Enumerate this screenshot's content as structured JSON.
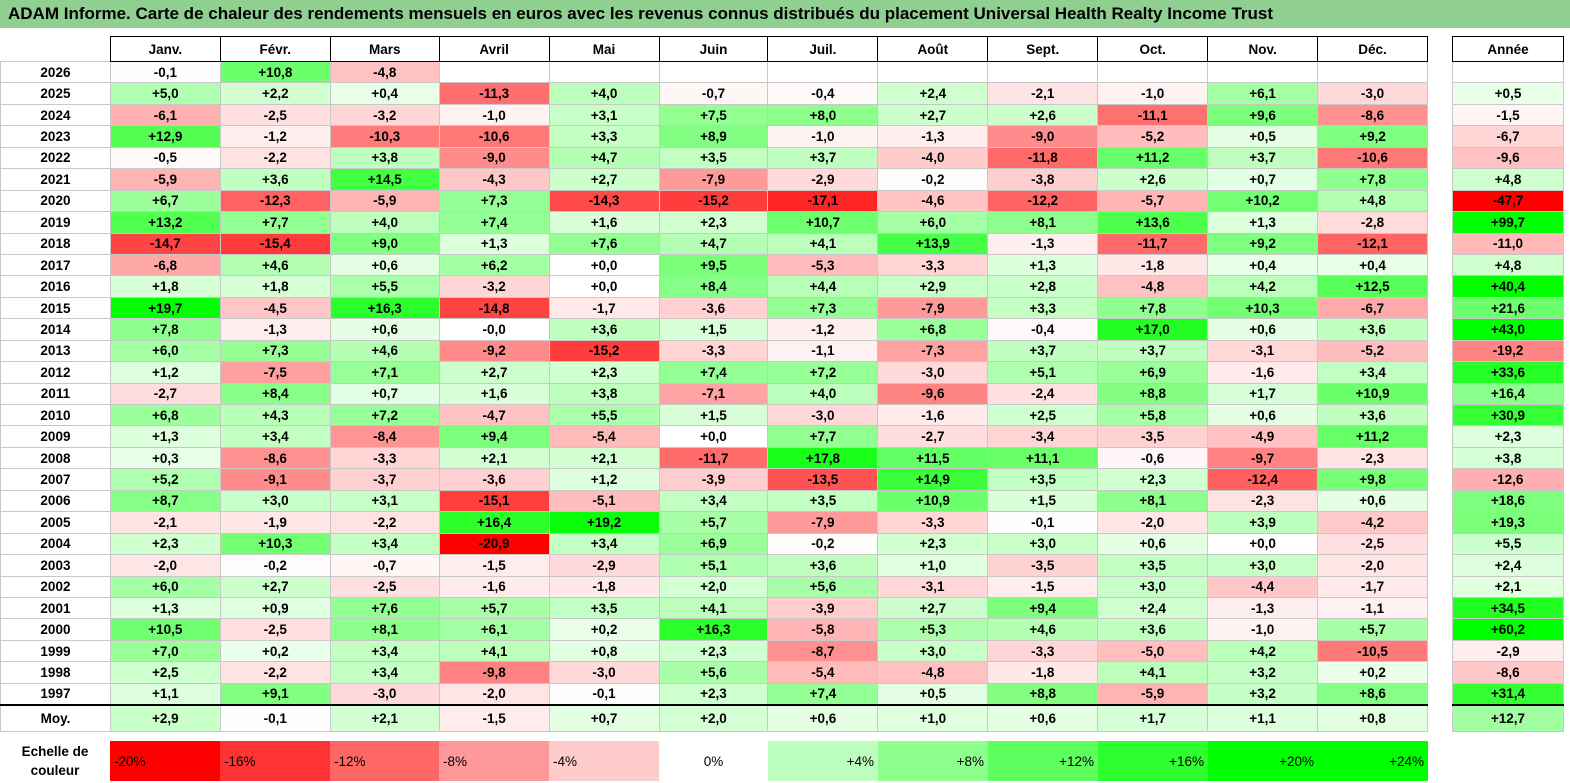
{
  "title": "ADAM Informe. Carte de chaleur des rendements mensuels en euros avec les revenus connus distribués du placement Universal Health Realty Income Trust",
  "chart_data": {
    "type": "heatmap",
    "columns": [
      "Janv.",
      "Févr.",
      "Mars",
      "Avril",
      "Mai",
      "Juin",
      "Juil.",
      "Août",
      "Sept.",
      "Oct.",
      "Nov.",
      "Déc."
    ],
    "year_column": "Année",
    "rows": [
      {
        "label": "2026",
        "values": [
          "-0,1",
          "+10,8",
          "-4,8",
          "",
          "",
          "",
          "",
          "",
          "",
          "",
          "",
          ""
        ],
        "year": ""
      },
      {
        "label": "2025",
        "values": [
          "+5,0",
          "+2,2",
          "+0,4",
          "-11,3",
          "+4,0",
          "-0,7",
          "-0,4",
          "+2,4",
          "-2,1",
          "-1,0",
          "+6,1",
          "-3,0"
        ],
        "year": "+0,5"
      },
      {
        "label": "2024",
        "values": [
          "-6,1",
          "-2,5",
          "-3,2",
          "-1,0",
          "+3,1",
          "+7,5",
          "+8,0",
          "+2,7",
          "+2,6",
          "-11,1",
          "+9,6",
          "-8,6"
        ],
        "year": "-1,5"
      },
      {
        "label": "2023",
        "values": [
          "+12,9",
          "-1,2",
          "-10,3",
          "-10,6",
          "+3,3",
          "+8,9",
          "-1,0",
          "-1,3",
          "-9,0",
          "-5,2",
          "+0,5",
          "+9,2"
        ],
        "year": "-6,7"
      },
      {
        "label": "2022",
        "values": [
          "-0,5",
          "-2,2",
          "+3,8",
          "-9,0",
          "+4,7",
          "+3,5",
          "+3,7",
          "-4,0",
          "-11,8",
          "+11,2",
          "+3,7",
          "-10,6"
        ],
        "year": "-9,6"
      },
      {
        "label": "2021",
        "values": [
          "-5,9",
          "+3,6",
          "+14,5",
          "-4,3",
          "+2,7",
          "-7,9",
          "-2,9",
          "-0,2",
          "-3,8",
          "+2,6",
          "+0,7",
          "+7,8"
        ],
        "year": "+4,8"
      },
      {
        "label": "2020",
        "values": [
          "+6,7",
          "-12,3",
          "-5,9",
          "+7,3",
          "-14,3",
          "-15,2",
          "-17,1",
          "-4,6",
          "-12,2",
          "-5,7",
          "+10,2",
          "+4,8"
        ],
        "year": "-47,7"
      },
      {
        "label": "2019",
        "values": [
          "+13,2",
          "+7,7",
          "+4,0",
          "+7,4",
          "+1,6",
          "+2,3",
          "+10,7",
          "+6,0",
          "+8,1",
          "+13,6",
          "+1,3",
          "-2,8"
        ],
        "year": "+99,7"
      },
      {
        "label": "2018",
        "values": [
          "-14,7",
          "-15,4",
          "+9,0",
          "+1,3",
          "+7,6",
          "+4,7",
          "+4,1",
          "+13,9",
          "-1,3",
          "-11,7",
          "+9,2",
          "-12,1"
        ],
        "year": "-11,0"
      },
      {
        "label": "2017",
        "values": [
          "-6,8",
          "+4,6",
          "+0,6",
          "+6,2",
          "+0,0",
          "+9,5",
          "-5,3",
          "-3,3",
          "+1,3",
          "-1,8",
          "+0,4",
          "+0,4"
        ],
        "year": "+4,8"
      },
      {
        "label": "2016",
        "values": [
          "+1,8",
          "+1,8",
          "+5,5",
          "-3,2",
          "+0,0",
          "+8,4",
          "+4,4",
          "+2,9",
          "+2,8",
          "-4,8",
          "+4,2",
          "+12,5"
        ],
        "year": "+40,4"
      },
      {
        "label": "2015",
        "values": [
          "+19,7",
          "-4,5",
          "+16,3",
          "-14,8",
          "-1,7",
          "-3,6",
          "+7,3",
          "-7,9",
          "+3,3",
          "+7,8",
          "+10,3",
          "-6,7"
        ],
        "year": "+21,6"
      },
      {
        "label": "2014",
        "values": [
          "+7,8",
          "-1,3",
          "+0,6",
          "-0,0",
          "+3,6",
          "+1,5",
          "-1,2",
          "+6,8",
          "-0,4",
          "+17,0",
          "+0,6",
          "+3,6"
        ],
        "year": "+43,0"
      },
      {
        "label": "2013",
        "values": [
          "+6,0",
          "+7,3",
          "+4,6",
          "-9,2",
          "-15,2",
          "-3,3",
          "-1,1",
          "-7,3",
          "+3,7",
          "+3,7",
          "-3,1",
          "-5,2"
        ],
        "year": "-19,2"
      },
      {
        "label": "2012",
        "values": [
          "+1,2",
          "-7,5",
          "+7,1",
          "+2,7",
          "+2,3",
          "+7,4",
          "+7,2",
          "-3,0",
          "+5,1",
          "+6,9",
          "-1,6",
          "+3,4"
        ],
        "year": "+33,6"
      },
      {
        "label": "2011",
        "values": [
          "-2,7",
          "+8,4",
          "+0,7",
          "+1,6",
          "+3,8",
          "-7,1",
          "+4,0",
          "-9,6",
          "-2,4",
          "+8,8",
          "+1,7",
          "+10,9"
        ],
        "year": "+16,4"
      },
      {
        "label": "2010",
        "values": [
          "+6,8",
          "+4,3",
          "+7,2",
          "-4,7",
          "+5,5",
          "+1,5",
          "-3,0",
          "-1,6",
          "+2,5",
          "+5,8",
          "+0,6",
          "+3,6"
        ],
        "year": "+30,9"
      },
      {
        "label": "2009",
        "values": [
          "+1,3",
          "+3,4",
          "-8,4",
          "+9,4",
          "-5,4",
          "+0,0",
          "+7,7",
          "-2,7",
          "-3,4",
          "-3,5",
          "-4,9",
          "+11,2"
        ],
        "year": "+2,3"
      },
      {
        "label": "2008",
        "values": [
          "+0,3",
          "-8,6",
          "-3,3",
          "+2,1",
          "+2,1",
          "-11,7",
          "+17,8",
          "+11,5",
          "+11,1",
          "-0,6",
          "-9,7",
          "-2,3"
        ],
        "year": "+3,8"
      },
      {
        "label": "2007",
        "values": [
          "+5,2",
          "-9,1",
          "-3,7",
          "-3,6",
          "+1,2",
          "-3,9",
          "-13,5",
          "+14,9",
          "+3,5",
          "+2,3",
          "-12,4",
          "+9,8"
        ],
        "year": "-12,6"
      },
      {
        "label": "2006",
        "values": [
          "+8,7",
          "+3,0",
          "+3,1",
          "-15,1",
          "-5,1",
          "+3,4",
          "+3,5",
          "+10,9",
          "+1,5",
          "+8,1",
          "-2,3",
          "+0,6"
        ],
        "year": "+18,6"
      },
      {
        "label": "2005",
        "values": [
          "-2,1",
          "-1,9",
          "-2,2",
          "+16,4",
          "+19,2",
          "+5,7",
          "-7,9",
          "-3,3",
          "-0,1",
          "-2,0",
          "+3,9",
          "-4,2"
        ],
        "year": "+19,3"
      },
      {
        "label": "2004",
        "values": [
          "+2,3",
          "+10,3",
          "+3,4",
          "-20,9",
          "+3,4",
          "+6,9",
          "-0,2",
          "+2,3",
          "+3,0",
          "+0,6",
          "+0,0",
          "-2,5"
        ],
        "year": "+5,5"
      },
      {
        "label": "2003",
        "values": [
          "-2,0",
          "-0,2",
          "-0,7",
          "-1,5",
          "-2,9",
          "+5,1",
          "+3,6",
          "+1,0",
          "-3,5",
          "+3,5",
          "+3,0",
          "-2,0"
        ],
        "year": "+2,4"
      },
      {
        "label": "2002",
        "values": [
          "+6,0",
          "+2,7",
          "-2,5",
          "-1,6",
          "-1,8",
          "+2,0",
          "+5,6",
          "-3,1",
          "-1,5",
          "+3,0",
          "-4,4",
          "-1,7"
        ],
        "year": "+2,1"
      },
      {
        "label": "2001",
        "values": [
          "+1,3",
          "+0,9",
          "+7,6",
          "+5,7",
          "+3,5",
          "+4,1",
          "-3,9",
          "+2,7",
          "+9,4",
          "+2,4",
          "-1,3",
          "-1,1"
        ],
        "year": "+34,5"
      },
      {
        "label": "2000",
        "values": [
          "+10,5",
          "-2,5",
          "+8,1",
          "+6,1",
          "+0,2",
          "+16,3",
          "-5,8",
          "+5,3",
          "+4,6",
          "+3,6",
          "-1,0",
          "+5,7"
        ],
        "year": "+60,2"
      },
      {
        "label": "1999",
        "values": [
          "+7,0",
          "+0,2",
          "+3,4",
          "+4,1",
          "+0,8",
          "+2,3",
          "-8,7",
          "+3,0",
          "-3,3",
          "-5,0",
          "+4,2",
          "-10,5"
        ],
        "year": "-2,9"
      },
      {
        "label": "1998",
        "values": [
          "+2,5",
          "-2,2",
          "+3,4",
          "-9,8",
          "-3,0",
          "+5,6",
          "-5,4",
          "-4,8",
          "-1,8",
          "+4,1",
          "+3,2",
          "+0,2"
        ],
        "year": "-8,6"
      },
      {
        "label": "1997",
        "values": [
          "+1,1",
          "+9,1",
          "-3,0",
          "-2,0",
          "-0,1",
          "+2,3",
          "+7,4",
          "+0,5",
          "+8,8",
          "-5,9",
          "+3,2",
          "+8,6"
        ],
        "year": "+31,4"
      }
    ],
    "average": {
      "label": "Moy.",
      "values": [
        "+2,9",
        "-0,1",
        "+2,1",
        "-1,5",
        "+0,7",
        "+2,0",
        "+0,6",
        "+1,0",
        "+0,6",
        "+1,7",
        "+1,1",
        "+0,8"
      ],
      "year": "+12,7"
    },
    "scale": {
      "label": "Echelle de couleur",
      "items": [
        "-20%",
        "-16%",
        "-12%",
        "-8%",
        "-4%",
        "0%",
        "+4%",
        "+8%",
        "+12%",
        "+16%",
        "+20%",
        "+24%"
      ],
      "values": [
        -20,
        -16,
        -12,
        -8,
        -4,
        0,
        4,
        8,
        12,
        16,
        20,
        24
      ]
    }
  }
}
